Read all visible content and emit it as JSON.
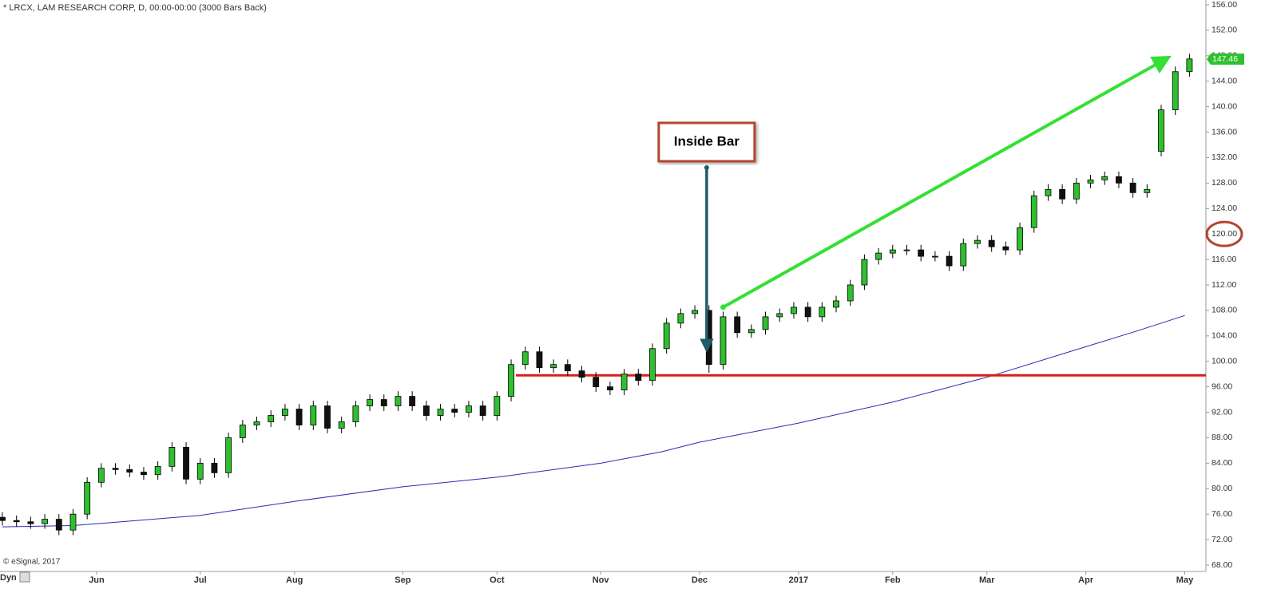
{
  "chart_data": {
    "type": "candlestick",
    "title": "* LRCX, LAM RESEARCH CORP, D, 00:00-00:00 (3000 Bars Back)",
    "copyright": "© eSignal, 2017",
    "corner_label": "Dyn",
    "up_color": "#2ec02e",
    "down_color": "#111111",
    "x": [
      0,
      3,
      6,
      9,
      12,
      15,
      18,
      21,
      24,
      27,
      30,
      33,
      36,
      39,
      42,
      45,
      48,
      51,
      54,
      57,
      60,
      63,
      66,
      69,
      72,
      75,
      78,
      81,
      84,
      87,
      90,
      93,
      96,
      99,
      102,
      105,
      108,
      111,
      114,
      117,
      120,
      123,
      126,
      129,
      132,
      135,
      138,
      141,
      144,
      147,
      150,
      153,
      156,
      159,
      162,
      165,
      168,
      171,
      174,
      177,
      180,
      183,
      186,
      189,
      192,
      195,
      198,
      201,
      204,
      207,
      210,
      213,
      216,
      219,
      222,
      225,
      228,
      231,
      234,
      237,
      240,
      243,
      246,
      249,
      252
    ],
    "open": [
      75.5,
      75,
      74.8,
      74.5,
      75.2,
      73.5,
      76,
      81,
      83.2,
      83,
      82.6,
      82.2,
      83.5,
      86.5,
      81.5,
      84,
      82.5,
      88,
      90,
      90.5,
      91.5,
      92.5,
      90,
      93,
      89.5,
      90.5,
      93,
      94,
      93,
      94.5,
      93,
      91.5,
      92.5,
      92,
      93,
      91.5,
      94.5,
      99.5,
      101.5,
      99,
      99.5,
      98.5,
      97.5,
      96,
      95.5,
      98,
      97,
      102,
      106,
      107.5,
      108,
      99.5,
      107,
      104.5,
      105,
      107,
      107.5,
      108.5,
      107,
      108.5,
      109.5,
      112,
      116,
      117,
      117.5,
      117.5,
      116.5,
      116.5,
      115,
      118.5,
      119,
      118,
      117.5,
      121,
      126,
      127,
      125.5,
      128,
      128.5,
      129,
      128,
      126.5,
      133,
      139.5,
      145.5
    ],
    "high": [
      76.3,
      75.8,
      75.6,
      76,
      76,
      76.8,
      81.8,
      84,
      84,
      83.8,
      83.4,
      84.3,
      87.3,
      87.3,
      84.8,
      84.8,
      88.8,
      90.8,
      91.3,
      92.3,
      93.3,
      93.3,
      93.8,
      93.8,
      91.3,
      93.8,
      94.8,
      94.8,
      95.3,
      95.3,
      93.8,
      93.3,
      93.3,
      93.8,
      93.8,
      95.3,
      100.3,
      102.3,
      102.3,
      100.3,
      100.3,
      99.3,
      98.3,
      96.8,
      98.8,
      98.8,
      102.8,
      106.8,
      108.3,
      108.8,
      108.8,
      107.8,
      107.8,
      105.8,
      107.8,
      108.3,
      109.3,
      109.3,
      109.3,
      110.3,
      112.8,
      116.8,
      117.8,
      118.3,
      118.3,
      118.3,
      117.3,
      117.3,
      119.3,
      119.8,
      119.8,
      118.8,
      121.8,
      126.8,
      127.8,
      127.8,
      128.8,
      129.3,
      129.8,
      129.8,
      128.8,
      127.8,
      140.3,
      146.3,
      148.3
    ],
    "low": [
      74.2,
      74,
      73.7,
      73.7,
      72.7,
      72.7,
      75.2,
      80.2,
      82.2,
      81.8,
      81.4,
      81.4,
      82.7,
      80.7,
      80.7,
      81.7,
      81.7,
      87.2,
      89.2,
      89.7,
      90.7,
      89.2,
      89.2,
      88.7,
      88.7,
      89.7,
      92.2,
      92.2,
      92.2,
      92.2,
      90.7,
      90.7,
      91.2,
      91.2,
      90.7,
      90.7,
      93.7,
      98.7,
      98.2,
      98.2,
      97.7,
      96.7,
      95.2,
      94.7,
      94.7,
      96.2,
      96.2,
      101.2,
      105.2,
      106.7,
      98.2,
      98.7,
      103.7,
      103.7,
      104.2,
      106.2,
      106.7,
      106.2,
      106.2,
      107.7,
      108.7,
      111.2,
      115.2,
      116.2,
      116.7,
      115.7,
      115.7,
      114.2,
      114.2,
      117.7,
      117.2,
      116.7,
      116.7,
      120.2,
      125.2,
      124.7,
      124.7,
      127.2,
      127.7,
      127.2,
      125.7,
      125.7,
      132.2,
      138.7,
      144.7
    ],
    "close": [
      75,
      74.8,
      74.5,
      75.2,
      73.5,
      76,
      81,
      83.2,
      83,
      82.6,
      82.2,
      83.5,
      86.5,
      81.5,
      84,
      82.5,
      88,
      90,
      90.5,
      91.5,
      92.5,
      90,
      93,
      89.5,
      90.5,
      93,
      94,
      93,
      94.5,
      93,
      91.5,
      92.5,
      92,
      93,
      91.5,
      94.5,
      99.5,
      101.5,
      99,
      99.5,
      98.5,
      97.5,
      96,
      95.5,
      98,
      97,
      102,
      106,
      107.5,
      108,
      99.5,
      107,
      104.5,
      105,
      107,
      107.5,
      108.5,
      107,
      108.5,
      109.5,
      112,
      116,
      117,
      117.5,
      117.5,
      116.5,
      116.5,
      115,
      118.5,
      119,
      118,
      117.5,
      121,
      126,
      127,
      125.5,
      128,
      128.5,
      129,
      128,
      126.5,
      127,
      139.5,
      145.5,
      147.5
    ],
    "moving_average": {
      "color": "#2b2bb0",
      "x": [
        0,
        15,
        42,
        62,
        85,
        105,
        127,
        140,
        148,
        169,
        189,
        209,
        230,
        241,
        251
      ],
      "values": [
        74,
        74.2,
        75.8,
        78,
        80.3,
        81.8,
        84,
        85.8,
        87.3,
        90.3,
        93.6,
        97.5,
        102.3,
        104.8,
        107.2
      ]
    },
    "support_line": {
      "color": "#d81e1e",
      "value": 97.8,
      "from_x": 109
    },
    "trend_arrow": {
      "color": "#33e033",
      "x": [
        153,
        247
      ],
      "values": [
        108.5,
        147.5
      ]
    },
    "annotation": {
      "text": "Inside Bar",
      "x": 149,
      "value": 101.5
    },
    "last_price": {
      "value": 147.46,
      "label": "147.46",
      "color": "#2ec02e"
    },
    "highlighted_tick": 13,
    "xlim": [
      0,
      256
    ],
    "ylim": [
      68,
      156
    ],
    "xticks": [
      {
        "value": 20,
        "label": "Jun"
      },
      {
        "value": 42,
        "label": "Jul"
      },
      {
        "value": 62,
        "label": "Aug"
      },
      {
        "value": 85,
        "label": "Sep"
      },
      {
        "value": 105,
        "label": "Oct"
      },
      {
        "value": 127,
        "label": "Nov"
      },
      {
        "value": 148,
        "label": "Dec"
      },
      {
        "value": 169,
        "label": "2017"
      },
      {
        "value": 189,
        "label": "Feb"
      },
      {
        "value": 209,
        "label": "Mar"
      },
      {
        "value": 230,
        "label": "Apr"
      },
      {
        "value": 251,
        "label": "May"
      }
    ],
    "yticks": [
      {
        "value": 68,
        "label": "68.00"
      },
      {
        "value": 72,
        "label": "72.00"
      },
      {
        "value": 76,
        "label": "76.00"
      },
      {
        "value": 80,
        "label": "80.00"
      },
      {
        "value": 84,
        "label": "84.00"
      },
      {
        "value": 88,
        "label": "88.00"
      },
      {
        "value": 92,
        "label": "92.00"
      },
      {
        "value": 96,
        "label": "96.00"
      },
      {
        "value": 100,
        "label": "100.00"
      },
      {
        "value": 104,
        "label": "104.00"
      },
      {
        "value": 108,
        "label": "108.00"
      },
      {
        "value": 112,
        "label": "112.00"
      },
      {
        "value": 116,
        "label": "116.00"
      },
      {
        "value": 120,
        "label": "120.00"
      },
      {
        "value": 124,
        "label": "124.00"
      },
      {
        "value": 128,
        "label": "128.00"
      },
      {
        "value": 132,
        "label": "132.00"
      },
      {
        "value": 136,
        "label": "136.00"
      },
      {
        "value": 140,
        "label": "140.00"
      },
      {
        "value": 144,
        "label": "144.00"
      },
      {
        "value": 148,
        "label": "148.00"
      },
      {
        "value": 152,
        "label": "152.00"
      },
      {
        "value": 156,
        "label": "156.00"
      }
    ]
  }
}
